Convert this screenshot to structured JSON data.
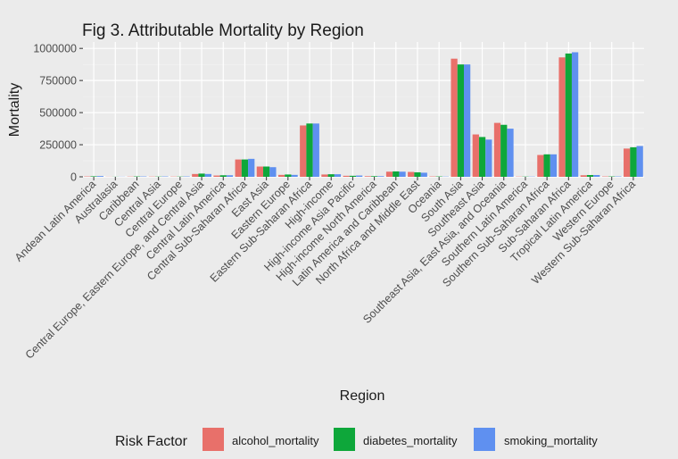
{
  "chart_data": {
    "type": "bar",
    "title": "Fig 3. Attributable Mortality by Region",
    "xlabel": "Region",
    "ylabel": "Mortality",
    "ylim": [
      0,
      1050000
    ],
    "yticks": [
      0,
      250000,
      500000,
      750000,
      1000000
    ],
    "ytick_labels": [
      "0",
      "250000",
      "500000",
      "750000",
      "1000000"
    ],
    "grid": true,
    "legend_title": "Risk Factor",
    "legend_position": "bottom",
    "categories": [
      "Andean Latin America",
      "Australasia",
      "Caribbean",
      "Central Asia",
      "Central Europe",
      "Central Europe, Eastern Europe, and Central Asia",
      "Central Latin America",
      "Central Sub-Saharan Africa",
      "East Asia",
      "Eastern Europe",
      "Eastern Sub-Saharan Africa",
      "High-income",
      "High-income Asia Pacific",
      "High-income North America",
      "Latin America and Caribbean",
      "North Africa and Middle East",
      "Oceania",
      "South Asia",
      "Southeast Asia",
      "Southeast Asia, East Asia, and Oceania",
      "Southern Latin America",
      "Southern Sub-Saharan Africa",
      "Sub-Saharan Africa",
      "Tropical Latin America",
      "Western Europe",
      "Western Sub-Saharan Africa"
    ],
    "series": [
      {
        "name": "alcohol_mortality",
        "color": "#e8706a",
        "values": [
          3000,
          1000,
          2000,
          2000,
          2000,
          22000,
          10000,
          135000,
          80000,
          15000,
          400000,
          18000,
          8000,
          5000,
          40000,
          38000,
          3000,
          920000,
          330000,
          420000,
          2000,
          170000,
          930000,
          12000,
          3000,
          220000
        ]
      },
      {
        "name": "diabetes_mortality",
        "color": "#0ea73a",
        "values": [
          4000,
          1000,
          3000,
          2000,
          2000,
          25000,
          12000,
          135000,
          80000,
          18000,
          415000,
          20000,
          8000,
          5000,
          42000,
          35000,
          3000,
          875000,
          310000,
          405000,
          2000,
          175000,
          960000,
          14000,
          3000,
          230000
        ]
      },
      {
        "name": "smoking_mortality",
        "color": "#5f90f0",
        "values": [
          6000,
          1000,
          3000,
          3000,
          3000,
          22000,
          12000,
          140000,
          75000,
          15000,
          415000,
          20000,
          10000,
          5000,
          40000,
          32000,
          2000,
          875000,
          290000,
          375000,
          2000,
          175000,
          970000,
          14000,
          3000,
          240000
        ]
      }
    ]
  }
}
